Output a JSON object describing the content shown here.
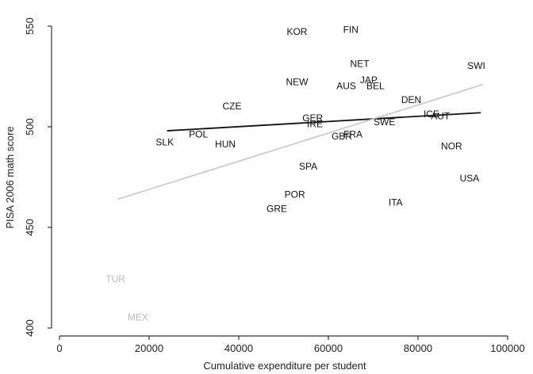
{
  "chart_data": {
    "type": "scatter",
    "title": "",
    "xlabel": "Cumulative expenditure per student",
    "ylabel": "PISA 2006 math score",
    "xlim": [
      0,
      100000
    ],
    "ylim": [
      400,
      550
    ],
    "xticks": [
      0,
      20000,
      40000,
      60000,
      80000,
      100000
    ],
    "yticks": [
      400,
      450,
      500,
      550
    ],
    "grid": false,
    "points": [
      {
        "label": "KOR",
        "x": 53000,
        "y": 547,
        "color": "#111111"
      },
      {
        "label": "FIN",
        "x": 65000,
        "y": 548,
        "color": "#111111"
      },
      {
        "label": "NET",
        "x": 67000,
        "y": 531,
        "color": "#111111"
      },
      {
        "label": "SWI",
        "x": 93000,
        "y": 530,
        "color": "#111111"
      },
      {
        "label": "NEW",
        "x": 53000,
        "y": 522,
        "color": "#111111"
      },
      {
        "label": "JAP",
        "x": 69000,
        "y": 523,
        "color": "#111111"
      },
      {
        "label": "AUS",
        "x": 64000,
        "y": 520,
        "color": "#111111"
      },
      {
        "label": "BEL",
        "x": 70500,
        "y": 520,
        "color": "#111111"
      },
      {
        "label": "DEN",
        "x": 78500,
        "y": 513,
        "color": "#111111"
      },
      {
        "label": "CZE",
        "x": 38500,
        "y": 510,
        "color": "#111111"
      },
      {
        "label": "GER",
        "x": 56500,
        "y": 504,
        "color": "#111111"
      },
      {
        "label": "IRE",
        "x": 57000,
        "y": 501,
        "color": "#111111"
      },
      {
        "label": "ICE",
        "x": 83000,
        "y": 506,
        "color": "#111111"
      },
      {
        "label": "AUT",
        "x": 85000,
        "y": 505,
        "color": "#111111"
      },
      {
        "label": "SWE",
        "x": 72500,
        "y": 502,
        "color": "#111111"
      },
      {
        "label": "GBR",
        "x": 63000,
        "y": 495,
        "color": "#111111"
      },
      {
        "label": "FRA",
        "x": 65500,
        "y": 496,
        "color": "#111111"
      },
      {
        "label": "POL",
        "x": 31000,
        "y": 496,
        "color": "#111111"
      },
      {
        "label": "SLK",
        "x": 23500,
        "y": 492,
        "color": "#111111"
      },
      {
        "label": "HUN",
        "x": 37000,
        "y": 491,
        "color": "#111111"
      },
      {
        "label": "NOR",
        "x": 87500,
        "y": 490,
        "color": "#111111"
      },
      {
        "label": "SPA",
        "x": 55500,
        "y": 480,
        "color": "#111111"
      },
      {
        "label": "USA",
        "x": 91500,
        "y": 474,
        "color": "#111111"
      },
      {
        "label": "POR",
        "x": 52500,
        "y": 466,
        "color": "#111111"
      },
      {
        "label": "ITA",
        "x": 75000,
        "y": 462,
        "color": "#111111"
      },
      {
        "label": "GRE",
        "x": 48500,
        "y": 459,
        "color": "#111111"
      },
      {
        "label": "TUR",
        "x": 12500,
        "y": 424,
        "color": "#bbbbbb"
      },
      {
        "label": "MEX",
        "x": 17500,
        "y": 405,
        "color": "#bbbbbb"
      }
    ],
    "lines": [
      {
        "x": [
          24000,
          94000
        ],
        "y": [
          498,
          507
        ],
        "color": "#111111",
        "width": 1.8
      },
      {
        "x": [
          13000,
          94500
        ],
        "y": [
          464,
          521
        ],
        "color": "#cccccc",
        "width": 1.8
      }
    ]
  }
}
